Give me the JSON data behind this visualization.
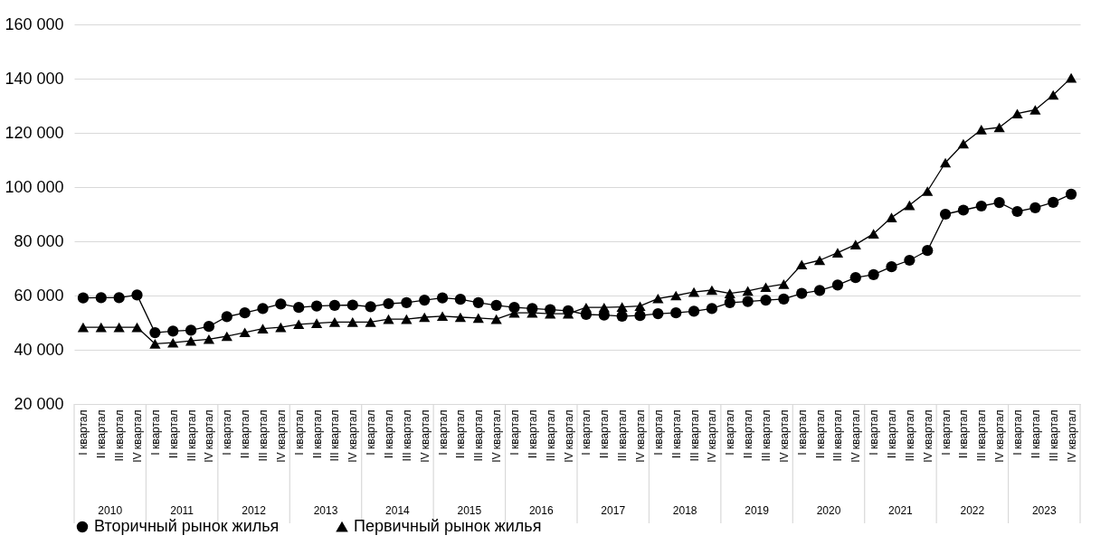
{
  "chart_data": {
    "type": "line",
    "categories": [
      "I квартал",
      "II квартал",
      "III квартал",
      "IV квартал",
      "I квартал",
      "II квартал",
      "III квартал",
      "IV квартал",
      "I квартал",
      "II квартал",
      "III квартал",
      "IV квартал",
      "I квартал",
      "II квартал",
      "III квартал",
      "IV квартал",
      "I квартал",
      "II квартал",
      "III квартал",
      "IV квартал",
      "I квартал",
      "II квартал",
      "III квартал",
      "IV квартал",
      "I квартал",
      "II квартал",
      "III квартал",
      "IV квартал",
      "I квартал",
      "II квартал",
      "III квартал",
      "IV квартал",
      "I квартал",
      "II квартал",
      "III квартал",
      "IV квартал",
      "I квартал",
      "II квартал",
      "III квартал",
      "IV квартал",
      "I квартал",
      "II квартал",
      "III квартал",
      "IV квартал",
      "I квартал",
      "II квартал",
      "III квартал",
      "IV квартал",
      "I квартал",
      "II квартал",
      "III квартал",
      "IV квартал",
      "I квартал",
      "II квартал",
      "III квартал",
      "IV квартал"
    ],
    "series": [
      {
        "name": "Вторичный рынок жилья",
        "color": "#000000",
        "marker": "circle",
        "values": [
          59100,
          59200,
          59200,
          60200,
          46300,
          46900,
          47200,
          48600,
          52200,
          53600,
          55200,
          56900,
          55600,
          56100,
          56400,
          56500,
          55900,
          57000,
          57400,
          58300,
          59100,
          58600,
          57400,
          56400,
          55600,
          55200,
          54800,
          54400,
          53000,
          52800,
          52400,
          52600,
          53300,
          53600,
          54200,
          55200,
          57400,
          57800,
          58300,
          58700,
          60800,
          61900,
          63900,
          66600,
          67700,
          70600,
          73000,
          76600,
          90000,
          91500,
          93000,
          94300,
          91000,
          92400,
          94400,
          97400
        ]
      },
      {
        "name": "Первичный рынок жилья",
        "color": "#000000",
        "marker": "triangle",
        "values": [
          48300,
          48300,
          48300,
          48300,
          42200,
          42600,
          43300,
          43900,
          45000,
          46400,
          47800,
          48300,
          49400,
          49800,
          50200,
          50200,
          50200,
          51300,
          51300,
          52000,
          52400,
          52000,
          51700,
          51300,
          53600,
          53600,
          53300,
          53300,
          55600,
          55600,
          55800,
          56100,
          58900,
          60000,
          61300,
          62000,
          60800,
          61700,
          63100,
          64200,
          71400,
          73000,
          75800,
          78800,
          82800,
          88800,
          93300,
          98500,
          109000,
          116000,
          121200,
          122000,
          127100,
          128500,
          134000,
          140300
        ]
      }
    ],
    "annotations": [
      "2010",
      "2011",
      "2012",
      "2013",
      "2014",
      "2015",
      "2016",
      "2017",
      "2018",
      "2019",
      "2020",
      "2021",
      "2022",
      "2023"
    ],
    "ylim": [
      20000,
      160000
    ],
    "yticks": [
      {
        "value": 20000,
        "label": "20 000"
      },
      {
        "value": 40000,
        "label": "40 000"
      },
      {
        "value": 60000,
        "label": "60 000"
      },
      {
        "value": 80000,
        "label": "80 000"
      },
      {
        "value": 100000,
        "label": "100 000"
      },
      {
        "value": 120000,
        "label": "120 000"
      },
      {
        "value": 140000,
        "label": "140 000"
      },
      {
        "value": 160000,
        "label": "160 000"
      }
    ],
    "grid": "y",
    "legend": "bottom"
  }
}
